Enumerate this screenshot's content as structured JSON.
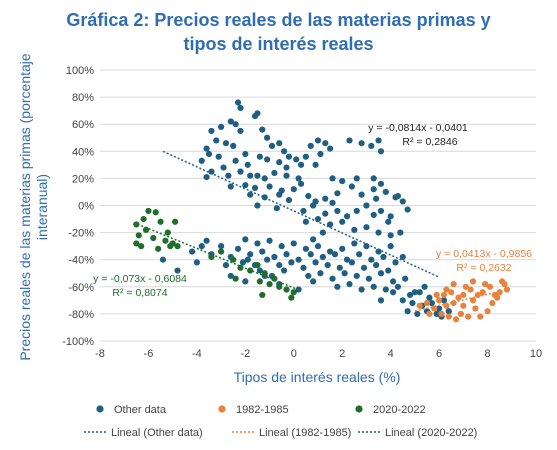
{
  "title_line1": "Gráfica 2: Precios reales de las materias primas y",
  "title_line2": "tipos de interés reales",
  "chart_data": {
    "type": "scatter",
    "xlabel": "Tipos de interés reales (%)",
    "ylabel_line1": "Precios reales de las materias primas (porcentaje",
    "ylabel_line2": "interanual)",
    "xlim": [
      -8,
      10
    ],
    "ylim": [
      -100,
      100
    ],
    "xticks": [
      -8,
      -6,
      -4,
      -2,
      0,
      2,
      4,
      6,
      8,
      10
    ],
    "yticks": [
      -100,
      -80,
      -60,
      -40,
      -20,
      0,
      20,
      40,
      60,
      80,
      100
    ],
    "x_tick_labels": [
      "-8",
      "-6",
      "-4",
      "-2",
      "0",
      "2",
      "4",
      "6",
      "8",
      "10"
    ],
    "y_tick_labels": [
      "-100%",
      "-80%",
      "-60%",
      "-40%",
      "-20%",
      "0%",
      "20%",
      "40%",
      "60%",
      "80%",
      "100%"
    ],
    "grid": "horizontal",
    "legend_position": "bottom",
    "series": [
      {
        "name": "Other data",
        "color": "#1f5f84",
        "trend_label": "Lineal (Other data)",
        "trend": {
          "slope": -0.0814,
          "intercept": -0.0401,
          "x_range": [
            -5.4,
            6.0
          ]
        },
        "equation": "y = -0,0814x - 0,0401",
        "r2": "R² = 0,2846",
        "points": [
          [
            -2.3,
            76
          ],
          [
            -2.2,
            72
          ],
          [
            -1.5,
            68
          ],
          [
            -1.6,
            66
          ],
          [
            -2.6,
            62
          ],
          [
            -2.4,
            60
          ],
          [
            -3.0,
            58
          ],
          [
            -3.4,
            55
          ],
          [
            -2.2,
            55
          ],
          [
            -1.3,
            56
          ],
          [
            -3.2,
            48
          ],
          [
            -2.8,
            46
          ],
          [
            -3.6,
            42
          ],
          [
            -2.5,
            44
          ],
          [
            -1.1,
            50
          ],
          [
            -0.6,
            46
          ],
          [
            -0.9,
            44
          ],
          [
            -3.5,
            38
          ],
          [
            -3.1,
            36
          ],
          [
            -3.8,
            33
          ],
          [
            -2.9,
            28
          ],
          [
            -2.4,
            33
          ],
          [
            -1.9,
            30
          ],
          [
            -1.4,
            36
          ],
          [
            -1.1,
            34
          ],
          [
            -0.6,
            32
          ],
          [
            -0.2,
            36
          ],
          [
            0.1,
            34
          ],
          [
            0.3,
            30
          ],
          [
            -0.3,
            28
          ],
          [
            0.5,
            36
          ],
          [
            0.7,
            44
          ],
          [
            1.0,
            48
          ],
          [
            1.3,
            46
          ],
          [
            1.5,
            42
          ],
          [
            1.1,
            38
          ],
          [
            0.9,
            30
          ],
          [
            -2.2,
            25
          ],
          [
            -1.8,
            22
          ],
          [
            -2.7,
            22
          ],
          [
            -3.4,
            25
          ],
          [
            -3.6,
            21
          ],
          [
            -1.5,
            22
          ],
          [
            -1.2,
            20
          ],
          [
            -0.8,
            24
          ],
          [
            -0.3,
            22
          ],
          [
            0.2,
            20
          ],
          [
            -2.0,
            15
          ],
          [
            -1.6,
            13
          ],
          [
            -2.6,
            14
          ],
          [
            -1.0,
            14
          ],
          [
            -0.5,
            11
          ],
          [
            -1.8,
            8
          ],
          [
            -1.2,
            6
          ],
          [
            -0.6,
            8
          ],
          [
            0.0,
            12
          ],
          [
            0.3,
            16
          ],
          [
            -0.2,
            4
          ],
          [
            0.6,
            7
          ],
          [
            0.9,
            3
          ],
          [
            1.3,
            5
          ],
          [
            1.6,
            2
          ],
          [
            -1.5,
            0
          ],
          [
            -0.7,
            -2
          ],
          [
            0.4,
            -4
          ],
          [
            0.8,
            0
          ],
          [
            1.3,
            -6
          ],
          [
            1.8,
            -4
          ],
          [
            2.2,
            -8
          ],
          [
            2.6,
            -4
          ],
          [
            3.0,
            0
          ],
          [
            3.3,
            -7
          ],
          [
            3.6,
            -4
          ],
          [
            4.0,
            -8
          ],
          [
            2.8,
            8
          ],
          [
            3.3,
            12
          ],
          [
            3.8,
            10
          ],
          [
            4.2,
            6
          ],
          [
            4.5,
            3
          ],
          [
            2.4,
            14
          ],
          [
            1.8,
            9
          ],
          [
            2.0,
            18
          ],
          [
            2.6,
            20
          ],
          [
            3.3,
            20
          ],
          [
            3.6,
            16
          ],
          [
            2.8,
            46
          ],
          [
            3.2,
            44
          ],
          [
            3.6,
            40
          ],
          [
            3.5,
            48
          ],
          [
            2.3,
            48
          ],
          [
            4.3,
            7
          ],
          [
            4.7,
            -3
          ],
          [
            0.5,
            -12
          ],
          [
            1.0,
            -10
          ],
          [
            1.5,
            -14
          ],
          [
            2.0,
            -12
          ],
          [
            2.5,
            -18
          ],
          [
            3.0,
            -16
          ],
          [
            3.5,
            -20
          ],
          [
            4.0,
            -22
          ],
          [
            1.2,
            -20
          ],
          [
            0.8,
            -25
          ],
          [
            -2.0,
            -25
          ],
          [
            -1.5,
            -28
          ],
          [
            -1.0,
            -26
          ],
          [
            -0.5,
            -30
          ],
          [
            0.0,
            -28
          ],
          [
            0.5,
            -32
          ],
          [
            1.0,
            -30
          ],
          [
            1.5,
            -34
          ],
          [
            2.0,
            -32
          ],
          [
            2.5,
            -28
          ],
          [
            3.0,
            -30
          ],
          [
            3.5,
            -34
          ],
          [
            4.0,
            -30
          ],
          [
            4.5,
            -38
          ],
          [
            -2.3,
            -32
          ],
          [
            -1.8,
            -36
          ],
          [
            -1.3,
            -34
          ],
          [
            -0.8,
            -38
          ],
          [
            -0.3,
            -36
          ],
          [
            0.2,
            -40
          ],
          [
            0.7,
            -36
          ],
          [
            1.2,
            -38
          ],
          [
            1.7,
            -36
          ],
          [
            2.2,
            -40
          ],
          [
            2.7,
            -36
          ],
          [
            3.2,
            -40
          ],
          [
            3.7,
            -38
          ],
          [
            4.2,
            -42
          ],
          [
            -3.0,
            -30
          ],
          [
            -3.4,
            -36
          ],
          [
            -2.6,
            -38
          ],
          [
            -2.1,
            -42
          ],
          [
            -1.6,
            -44
          ],
          [
            -1.1,
            -40
          ],
          [
            -0.6,
            -44
          ],
          [
            -0.1,
            -42
          ],
          [
            0.4,
            -46
          ],
          [
            0.9,
            -42
          ],
          [
            1.4,
            -44
          ],
          [
            1.9,
            -46
          ],
          [
            2.4,
            -42
          ],
          [
            2.9,
            -46
          ],
          [
            3.4,
            -44
          ],
          [
            3.9,
            -48
          ],
          [
            -1.4,
            -48
          ],
          [
            -0.9,
            -52
          ],
          [
            -0.4,
            -48
          ],
          [
            0.6,
            -52
          ],
          [
            1.1,
            -50
          ],
          [
            1.6,
            -54
          ],
          [
            2.1,
            -50
          ],
          [
            2.6,
            -52
          ],
          [
            3.1,
            -54
          ],
          [
            3.6,
            -50
          ],
          [
            4.1,
            -56
          ],
          [
            4.6,
            -54
          ],
          [
            -2.8,
            -44
          ],
          [
            -3.8,
            -30
          ],
          [
            -3.6,
            -26
          ],
          [
            -4.0,
            -42
          ],
          [
            -4.2,
            -34
          ],
          [
            -4.8,
            -48
          ],
          [
            -5.4,
            -40
          ],
          [
            -2.0,
            -56
          ],
          [
            -2.6,
            -52
          ],
          [
            3.3,
            -60
          ],
          [
            3.8,
            -62
          ],
          [
            4.3,
            -60
          ],
          [
            4.8,
            -66
          ],
          [
            5.2,
            -64
          ],
          [
            5.6,
            -68
          ],
          [
            4.5,
            -70
          ],
          [
            4.9,
            -72
          ],
          [
            5.3,
            -74
          ],
          [
            5.7,
            -72
          ],
          [
            6.0,
            -76
          ],
          [
            6.2,
            -70
          ],
          [
            4.7,
            -78
          ],
          [
            5.1,
            -80
          ],
          [
            5.5,
            -78
          ],
          [
            5.9,
            -80
          ],
          [
            6.1,
            -82
          ],
          [
            6.4,
            -78
          ],
          [
            5.0,
            -64
          ],
          [
            5.4,
            -60
          ],
          [
            4.1,
            -64
          ],
          [
            3.6,
            -70
          ],
          [
            0.2,
            -62
          ],
          [
            -0.6,
            -58
          ],
          [
            0.8,
            -56
          ],
          [
            -1.9,
            -40
          ],
          [
            -1.2,
            -52
          ],
          [
            2.3,
            -58
          ],
          [
            2.8,
            -62
          ],
          [
            1.8,
            -60
          ],
          [
            4.4,
            -20
          ],
          [
            3.9,
            -12
          ],
          [
            3.4,
            5
          ],
          [
            1.6,
            20
          ],
          [
            -0.4,
            40
          ],
          [
            -2.0,
            38
          ]
        ]
      },
      {
        "name": "1982-1985",
        "color": "#e8823c",
        "trend_label": "Lineal (1982-1985)",
        "trend": {
          "slope": 0.0413,
          "intercept": -0.9856,
          "x_range": [
            5.0,
            8.8
          ]
        },
        "equation": "y = 0,0413x - 0,9856",
        "r2": "R² = 0,2632",
        "points": [
          [
            5.2,
            -74
          ],
          [
            5.5,
            -72
          ],
          [
            5.8,
            -76
          ],
          [
            6.0,
            -70
          ],
          [
            6.2,
            -66
          ],
          [
            6.3,
            -62
          ],
          [
            6.5,
            -64
          ],
          [
            6.6,
            -72
          ],
          [
            6.8,
            -68
          ],
          [
            7.0,
            -66
          ],
          [
            7.1,
            -60
          ],
          [
            7.3,
            -62
          ],
          [
            7.4,
            -70
          ],
          [
            7.6,
            -66
          ],
          [
            7.8,
            -64
          ],
          [
            7.9,
            -58
          ],
          [
            8.1,
            -60
          ],
          [
            8.3,
            -66
          ],
          [
            8.5,
            -64
          ],
          [
            8.7,
            -58
          ],
          [
            8.8,
            -62
          ],
          [
            6.1,
            -80
          ],
          [
            6.4,
            -82
          ],
          [
            6.7,
            -84
          ],
          [
            6.9,
            -80
          ],
          [
            7.2,
            -82
          ],
          [
            7.5,
            -76
          ],
          [
            7.7,
            -82
          ],
          [
            8.0,
            -78
          ],
          [
            8.2,
            -72
          ],
          [
            8.6,
            -56
          ],
          [
            5.9,
            -66
          ],
          [
            6.6,
            -58
          ],
          [
            7.0,
            -74
          ],
          [
            7.4,
            -56
          ],
          [
            8.4,
            -68
          ],
          [
            5.6,
            -80
          ],
          [
            6.3,
            -74
          ]
        ]
      },
      {
        "name": "2020-2022",
        "color": "#1f6e2c",
        "trend_label": "Lineal (2020-2022)",
        "trend": {
          "slope": -0.073,
          "intercept": -0.6084,
          "x_range": [
            -6.6,
            0.2
          ]
        },
        "equation": "y = -0,073x - 0,6084",
        "r2": "R² = 0,8074",
        "points": [
          [
            -6.5,
            -14
          ],
          [
            -6.2,
            -10
          ],
          [
            -6.0,
            -4
          ],
          [
            -5.7,
            -5
          ],
          [
            -5.5,
            -12
          ],
          [
            -5.2,
            -20
          ],
          [
            -4.9,
            -12
          ],
          [
            -6.4,
            -22
          ],
          [
            -6.1,
            -18
          ],
          [
            -5.8,
            -24
          ],
          [
            -5.3,
            -26
          ],
          [
            -5.0,
            -28
          ],
          [
            -4.8,
            -30
          ],
          [
            -6.5,
            -28
          ],
          [
            -6.3,
            -30
          ],
          [
            -5.6,
            -32
          ],
          [
            -5.1,
            -30
          ],
          [
            -3.4,
            -38
          ],
          [
            -3.0,
            -34
          ],
          [
            -2.5,
            -40
          ],
          [
            -2.2,
            -46
          ],
          [
            -1.8,
            -48
          ],
          [
            -1.5,
            -44
          ],
          [
            -1.2,
            -50
          ],
          [
            -1.4,
            -56
          ],
          [
            -1.0,
            -58
          ],
          [
            -0.6,
            -60
          ],
          [
            -0.3,
            -62
          ],
          [
            -0.1,
            -68
          ],
          [
            0.0,
            -64
          ],
          [
            -1.3,
            -66
          ],
          [
            -2.4,
            -54
          ],
          [
            -0.8,
            -54
          ]
        ]
      }
    ]
  }
}
